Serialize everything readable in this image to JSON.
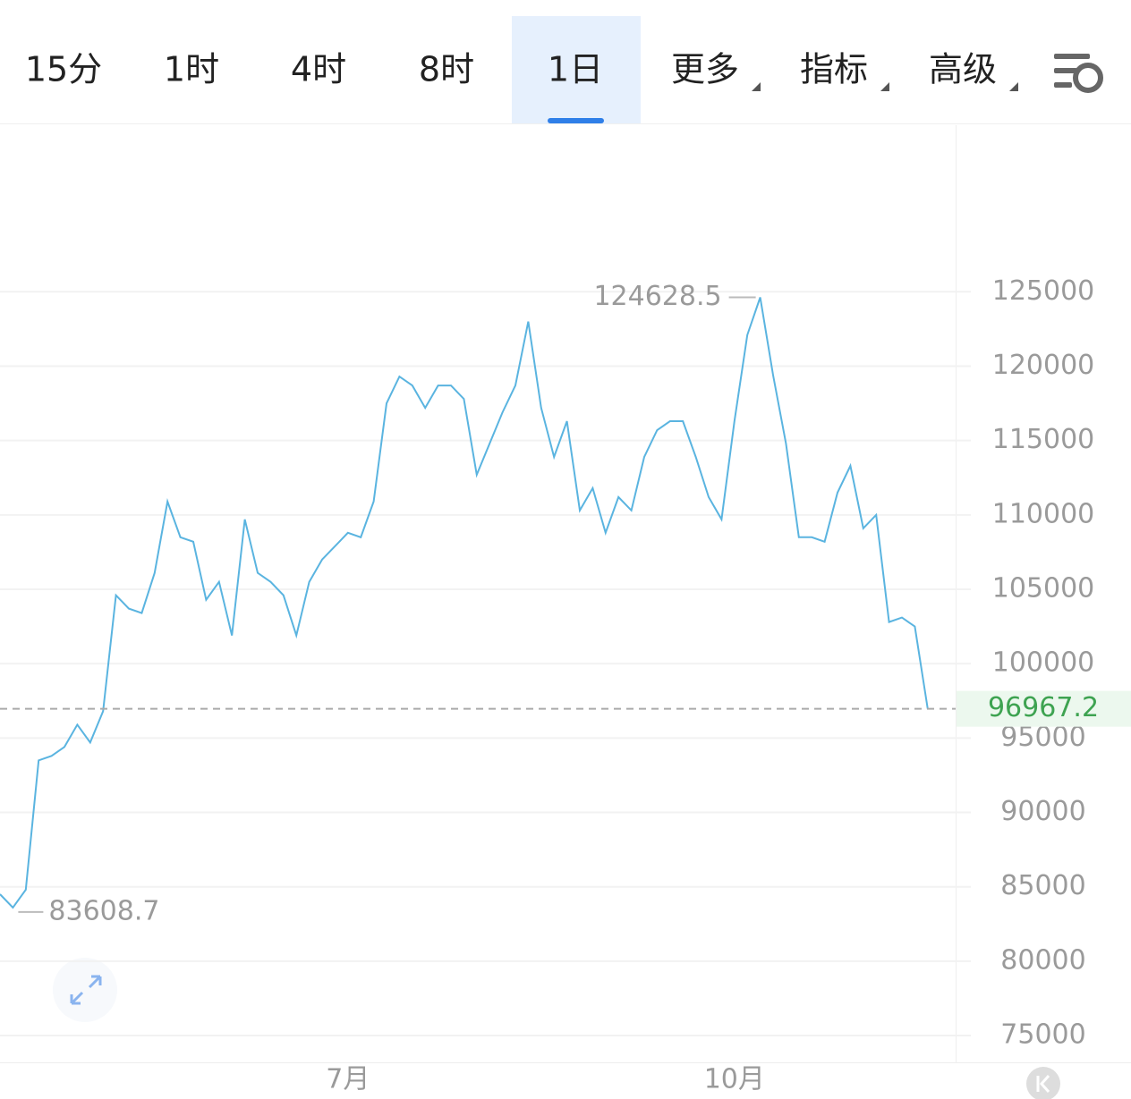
{
  "toolbar": {
    "tabs": [
      "15分",
      "1时",
      "4时",
      "8时",
      "1日",
      "更多",
      "指标",
      "高级"
    ],
    "active": 4
  },
  "chart_data": {
    "type": "line",
    "color": "#5ab4e0",
    "categories": [
      null,
      null,
      null,
      null,
      null,
      null,
      null,
      null,
      null,
      null,
      null,
      null,
      null,
      null,
      null,
      null,
      null,
      null,
      null,
      null,
      null,
      null,
      null,
      null,
      null,
      null,
      null,
      "7月",
      null,
      null,
      null,
      null,
      null,
      null,
      null,
      null,
      null,
      null,
      null,
      null,
      null,
      null,
      null,
      null,
      null,
      null,
      null,
      null,
      null,
      null,
      null,
      null,
      null,
      null,
      null,
      null,
      null,
      "10月",
      null,
      null,
      null,
      null,
      null,
      null,
      null,
      null,
      null,
      null,
      null,
      null,
      null,
      null,
      null
    ],
    "values": [
      84500,
      83608.7,
      84800,
      93500,
      93800,
      94400,
      95900,
      94700,
      96800,
      104600,
      103700,
      103400,
      106100,
      110900,
      108500,
      108200,
      104300,
      105500,
      101900,
      109700,
      106100,
      105500,
      104600,
      101900,
      105500,
      107000,
      107900,
      108800,
      108500,
      110900,
      117500,
      119300,
      118700,
      117200,
      118700,
      118700,
      117800,
      112700,
      114800,
      116900,
      118700,
      123000,
      117200,
      113900,
      116300,
      110300,
      111800,
      108800,
      111200,
      110300,
      113900,
      115700,
      116300,
      116300,
      113900,
      111200,
      109700,
      116300,
      122100,
      124628.5,
      119400,
      114800,
      108500,
      108500,
      108200,
      111500,
      113300,
      109100,
      110000,
      102800,
      103100,
      102500,
      96967.2
    ],
    "ylim": [
      73200,
      136200
    ],
    "yticks": [
      75000,
      80000,
      85000,
      90000,
      95000,
      100000,
      105000,
      110000,
      115000,
      120000,
      125000
    ],
    "grid": true
  }
}
